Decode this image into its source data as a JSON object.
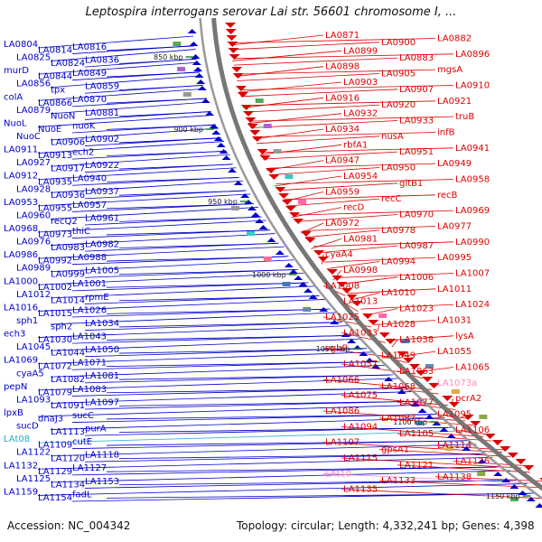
{
  "title": "Leptospira interrogans serovar Lai str. 56601 chromosome I, ...",
  "footer": {
    "accession": "Accession: NC_004342",
    "summary": "Topology: circular; Length: 4,332,241 bp; Genes: 4,398"
  },
  "colors": {
    "plus_strand": "#0000cc",
    "minus_strand": "#dd0000",
    "rna": "#ff88bb",
    "trna": "#22aacc",
    "backbone": "#888888",
    "tick": "#228822"
  },
  "ticks": [
    {
      "label": "850 kbp"
    },
    {
      "label": "900 kbp"
    },
    {
      "label": "950 kbp"
    },
    {
      "label": "1000 kbp"
    },
    {
      "label": "1050 kbp"
    },
    {
      "label": "1100 kbp"
    },
    {
      "label": "1150 kbp"
    }
  ],
  "left_labels": [
    "LA0804",
    "LA0814",
    "LA0816",
    "LA0825",
    "LA0824",
    "LA0836",
    "murD",
    "LA0844",
    "LA0849",
    "LA0856",
    "tpx",
    "LA0859",
    "colA",
    "LA0866",
    "LA0870",
    "LA0879",
    "NuoN",
    "LA0881",
    "NuoL",
    "NuoE",
    "nuoK",
    "NuoC",
    "LA0906",
    "LA0902",
    "LA0911",
    "LA0913",
    "ech2",
    "LA0927",
    "LA0917",
    "LA0922",
    "LA0912",
    "LA0935",
    "LA0940",
    "LA0928",
    "LA0936",
    "LA0937",
    "LA0953",
    "LA0955",
    "LA0957",
    "LA0960",
    "recQ2",
    "LA0961",
    "LA0968",
    "LA0973",
    "thiC",
    "LA0976",
    "LA0983",
    "LA0982",
    "LA0986",
    "LA0992",
    "LA0988",
    "LA0989",
    "LA0999",
    "LA1005",
    "LA1000",
    "LA1002",
    "LA1001",
    "LA1012",
    "LA1014",
    "rpmE",
    "LA1016",
    "LA1015",
    "LA1026",
    "sph1",
    "sph2",
    "LA1034",
    "ech3",
    "LA1030",
    "LA1043",
    "LA1045",
    "LA1044",
    "LA1050",
    "LA1069",
    "LA1072",
    "LA1071",
    "cyaA5",
    "LA1082",
    "LA1081",
    "pepN",
    "LA1079",
    "LA1083",
    "LA1093",
    "LA1091",
    "LA1097",
    "lpxB",
    "dnaJ3",
    "sucC",
    "sucD",
    "LA1113",
    "purA",
    "LAt08",
    "LA1109",
    "cutE",
    "LA1122",
    "LA1120",
    "LA1118",
    "LA1132",
    "LA1129",
    "LA1127",
    "LA1125",
    "LA1134",
    "LA1153",
    "LA1159",
    "LA1154",
    "fadL"
  ],
  "left_rna": [
    "LAt08"
  ],
  "right_labels": [
    "LA0871",
    "LA0900",
    "LA0882",
    "LA0899",
    "LA0883",
    "LA0896",
    "LA0898",
    "LA0905",
    "mgsA",
    "LA0903",
    "LA0907",
    "LA0910",
    "LA0916",
    "LA0920",
    "LA0921",
    "LA0932",
    "LA0933",
    "truB",
    "LA0934",
    "nusA",
    "infB",
    "rbfA1",
    "LA0951",
    "LA0941",
    "LA0947",
    "LA0950",
    "LA0949",
    "LA0954",
    "gltB1",
    "LA0958",
    "LA0959",
    "recC",
    "recB",
    "recD",
    "LA0970",
    "LA0969",
    "LA0972",
    "LA0978",
    "LA0977",
    "LA0981",
    "LA0987",
    "LA0990",
    "cyaA4",
    "LA0994",
    "LA0995",
    "LA0998",
    "LA1006",
    "LA1007",
    "LA1008",
    "LA1010",
    "LA1011",
    "LA1013",
    "LA1023",
    "LA1024",
    "LA1025",
    "LA1028",
    "LA1031",
    "LA1033",
    "LA1038",
    "lysA",
    "vgbP",
    "LA1049",
    "LA1055",
    "LA1057",
    "LA1063",
    "LA1065",
    "LA1066",
    "LA1068",
    "LA1073a",
    "LA1075",
    "LA1077",
    "pcrA2",
    "LA1086",
    "LA1087",
    "LA1095",
    "LA1094",
    "LA1105",
    "LA1106",
    "LA1107",
    "gpsA1",
    "LA1114",
    "LA1115",
    "LA1121",
    "LA1126",
    "LAt10",
    "LA1133",
    "LA1138",
    "LA1135"
  ],
  "right_rna": [
    "LA1073a",
    "LAt10"
  ]
}
